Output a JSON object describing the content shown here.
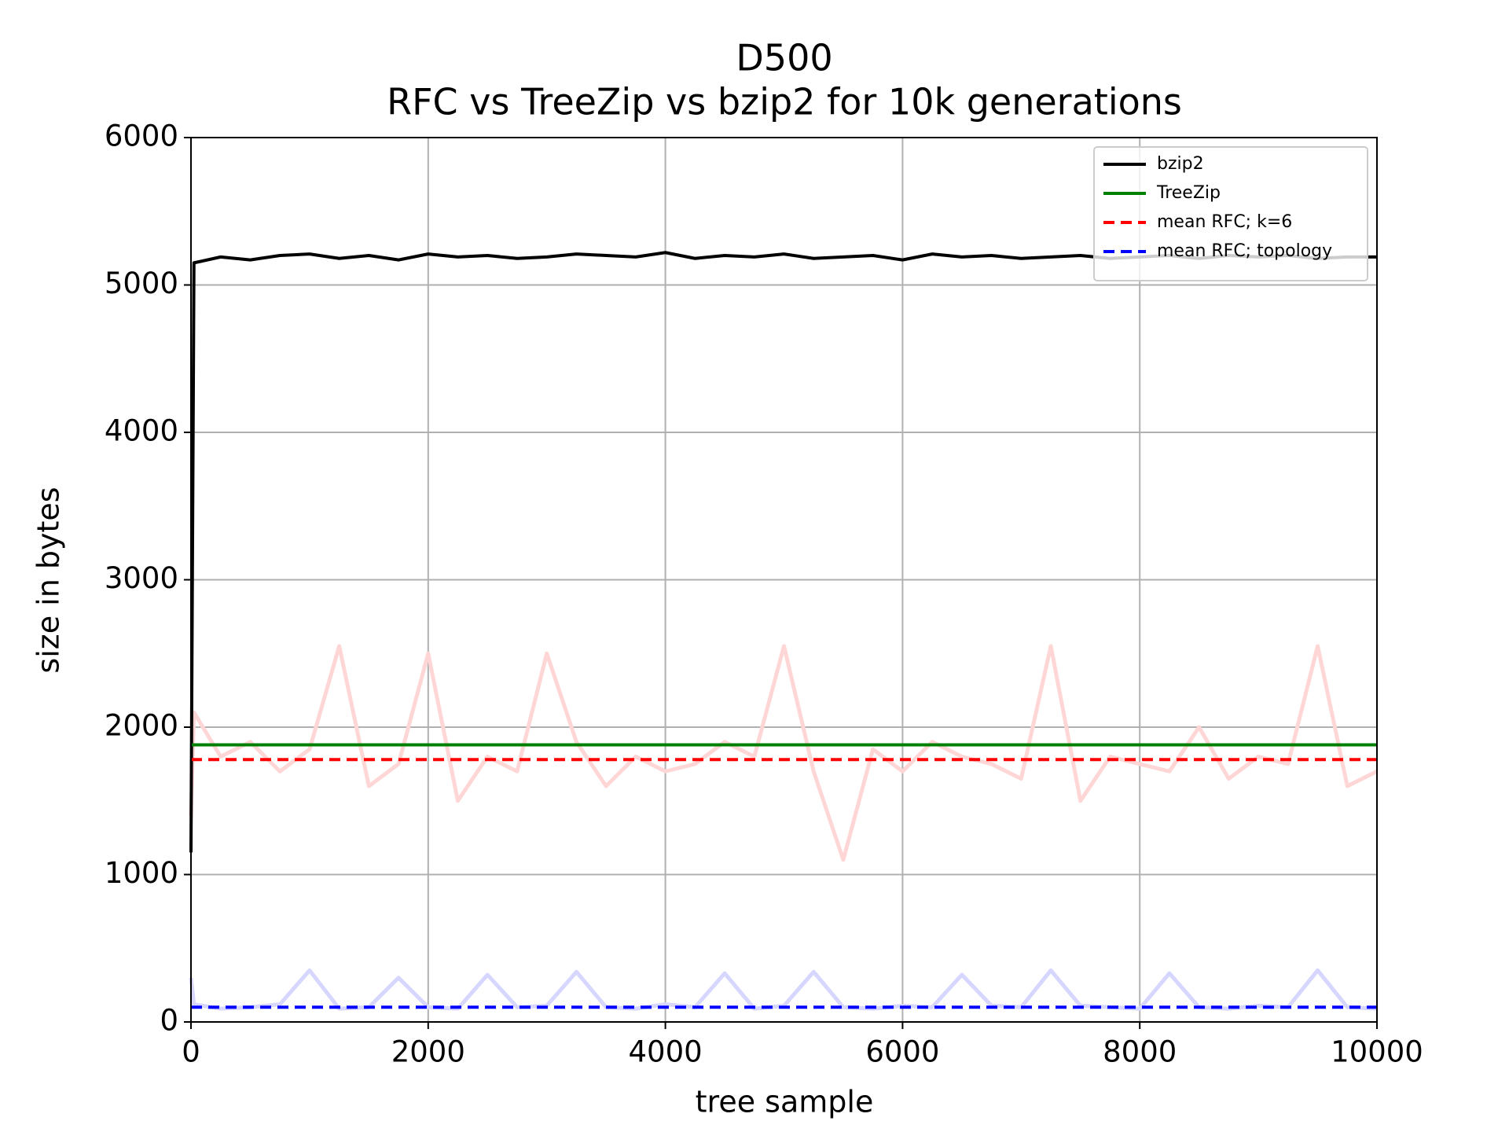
{
  "chart_data": {
    "type": "line",
    "title": "D500",
    "subtitle": "RFC vs TreeZip vs bzip2 for 10k generations",
    "xlabel": "tree sample",
    "ylabel": "size in bytes",
    "x": [
      0,
      25,
      250,
      500,
      750,
      1000,
      1250,
      1500,
      1750,
      2000,
      2250,
      2500,
      2750,
      3000,
      3250,
      3500,
      3750,
      4000,
      4250,
      4500,
      4750,
      5000,
      5250,
      5500,
      5750,
      6000,
      6250,
      6500,
      6750,
      7000,
      7250,
      7500,
      7750,
      8000,
      8250,
      8500,
      8750,
      9000,
      9250,
      9500,
      9750,
      10000
    ],
    "xlim": [
      0,
      10000
    ],
    "xticks": [
      0,
      2000,
      4000,
      6000,
      8000,
      10000
    ],
    "ylim": [
      0,
      6000
    ],
    "yticks": [
      0,
      1000,
      2000,
      3000,
      4000,
      5000,
      6000
    ],
    "grid": true,
    "legend": "upper right",
    "series": [
      {
        "color": "#ffd6d6",
        "values": [
          1400,
          2100,
          1800,
          1900,
          1700,
          1850,
          2550,
          1600,
          1750,
          2500,
          1500,
          1800,
          1700,
          2500,
          1900,
          1600,
          1800,
          1700,
          1750,
          1900,
          1800,
          2550,
          1700,
          1100,
          1850,
          1700,
          1900,
          1800,
          1750,
          1650,
          2550,
          1500,
          1800,
          1750,
          1700,
          2000,
          1650,
          1800,
          1750,
          2550,
          1600,
          1700
        ]
      },
      {
        "color": "#d6d6ff",
        "values": [
          300,
          120,
          90,
          100,
          120,
          350,
          90,
          100,
          300,
          100,
          90,
          320,
          100,
          110,
          340,
          100,
          90,
          120,
          100,
          330,
          90,
          110,
          340,
          100,
          90,
          110,
          100,
          320,
          110,
          100,
          350,
          110,
          100,
          90,
          330,
          100,
          90,
          110,
          100,
          350,
          100,
          90
        ]
      },
      {
        "name": "bzip2",
        "color": "#000000",
        "dash": false,
        "values": [
          1150,
          5150,
          5190,
          5170,
          5200,
          5210,
          5180,
          5200,
          5170,
          5210,
          5190,
          5200,
          5180,
          5190,
          5210,
          5200,
          5190,
          5220,
          5180,
          5200,
          5190,
          5210,
          5180,
          5190,
          5200,
          5170,
          5210,
          5190,
          5200,
          5180,
          5190,
          5200,
          5180,
          5190,
          5200,
          5180,
          5200,
          5190,
          5200,
          5180,
          5190,
          5190
        ]
      },
      {
        "name": "TreeZip",
        "color": "#008000",
        "dash": false,
        "x": [
          0,
          10000
        ],
        "values": [
          1880,
          1880
        ]
      },
      {
        "name": "mean RFC; k=6",
        "color": "#ff0000",
        "dash": true,
        "x": [
          0,
          10000
        ],
        "values": [
          1780,
          1780
        ]
      },
      {
        "name": "mean RFC; topology",
        "color": "#0000ff",
        "dash": true,
        "x": [
          0,
          10000
        ],
        "values": [
          100,
          100
        ]
      }
    ]
  }
}
